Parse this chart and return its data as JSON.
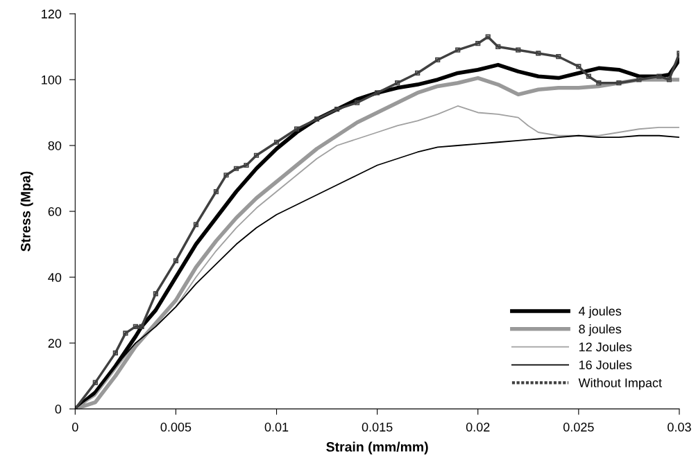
{
  "chart_data": {
    "type": "line",
    "xlabel": "Strain (mm/mm)",
    "ylabel": "Stress (Mpa)",
    "xlim": [
      0,
      0.03
    ],
    "xticks": [
      0,
      0.005,
      0.01,
      0.015,
      0.02,
      0.025,
      0.03
    ],
    "ylim": [
      0,
      120
    ],
    "yticks": [
      0,
      20,
      40,
      60,
      80,
      100,
      120
    ],
    "grid": false,
    "legend": "bottom right",
    "marker": "none",
    "line_style": "solid",
    "series": [
      {
        "name": "4 joules",
        "color": "#000000",
        "x": [
          0,
          0.001,
          0.002,
          0.003,
          0.0033,
          0.004,
          0.005,
          0.006,
          0.007,
          0.008,
          0.009,
          0.01,
          0.011,
          0.012,
          0.013,
          0.014,
          0.015,
          0.016,
          0.017,
          0.018,
          0.019,
          0.02,
          0.021,
          0.022,
          0.023,
          0.024,
          0.025,
          0.026,
          0.027,
          0.028,
          0.029,
          0.0295,
          0.03
        ],
        "values": [
          0,
          5,
          13,
          22,
          25,
          30,
          40,
          50,
          58,
          66,
          73,
          79,
          84,
          88,
          91,
          94,
          96,
          97.5,
          98.5,
          100,
          102,
          103,
          104.5,
          102.5,
          101,
          100.5,
          102,
          103.5,
          103,
          101,
          101,
          101.5,
          106
        ]
      },
      {
        "name": "8 joules",
        "color": "#999999",
        "x": [
          0,
          0.001,
          0.002,
          0.003,
          0.004,
          0.005,
          0.006,
          0.007,
          0.008,
          0.009,
          0.01,
          0.011,
          0.012,
          0.013,
          0.014,
          0.015,
          0.016,
          0.017,
          0.018,
          0.019,
          0.02,
          0.021,
          0.022,
          0.023,
          0.024,
          0.025,
          0.026,
          0.027,
          0.028,
          0.029,
          0.03
        ],
        "values": [
          0,
          2,
          10,
          19,
          26,
          33,
          43,
          51,
          58,
          64,
          69,
          74,
          79,
          83,
          87,
          90,
          93,
          96,
          98,
          99,
          100.5,
          98.5,
          95.5,
          97,
          97.5,
          97.5,
          98,
          99,
          100,
          100,
          100
        ]
      },
      {
        "name": "12 Joules",
        "color": "#a0a0a0",
        "x": [
          0,
          0.001,
          0.002,
          0.003,
          0.004,
          0.005,
          0.006,
          0.007,
          0.008,
          0.009,
          0.01,
          0.011,
          0.012,
          0.013,
          0.014,
          0.015,
          0.016,
          0.017,
          0.018,
          0.019,
          0.02,
          0.021,
          0.022,
          0.0225,
          0.023,
          0.024,
          0.025,
          0.026,
          0.027,
          0.028,
          0.029,
          0.03
        ],
        "values": [
          0,
          4,
          12,
          20,
          25,
          31,
          40,
          48,
          55,
          61,
          66,
          71,
          76,
          80,
          82,
          84,
          86,
          87.5,
          89.5,
          92,
          90,
          89.5,
          88.5,
          86,
          84,
          83,
          83,
          83,
          84,
          85,
          85.5,
          85.5
        ]
      },
      {
        "name": "16 Joules",
        "color": "#000000",
        "x": [
          0,
          0.001,
          0.002,
          0.003,
          0.004,
          0.005,
          0.006,
          0.007,
          0.008,
          0.009,
          0.01,
          0.011,
          0.012,
          0.013,
          0.014,
          0.015,
          0.016,
          0.017,
          0.018,
          0.019,
          0.02,
          0.021,
          0.022,
          0.023,
          0.024,
          0.025,
          0.026,
          0.027,
          0.028,
          0.029,
          0.03
        ],
        "values": [
          0,
          5,
          13,
          20,
          25,
          31,
          38,
          44,
          50,
          55,
          59,
          62,
          65,
          68,
          71,
          74,
          76,
          78,
          79.5,
          80,
          80.5,
          81,
          81.5,
          82,
          82.5,
          83,
          82.5,
          82.5,
          83,
          83,
          82.5
        ]
      },
      {
        "name": "Without Impact",
        "color": "#404040",
        "marker": "square",
        "x": [
          0,
          0.001,
          0.002,
          0.0025,
          0.003,
          0.0033,
          0.004,
          0.005,
          0.006,
          0.007,
          0.0075,
          0.008,
          0.0085,
          0.009,
          0.01,
          0.011,
          0.012,
          0.013,
          0.014,
          0.015,
          0.016,
          0.017,
          0.018,
          0.019,
          0.02,
          0.0205,
          0.021,
          0.022,
          0.023,
          0.024,
          0.025,
          0.0255,
          0.026,
          0.027,
          0.028,
          0.029,
          0.0295,
          0.03
        ],
        "values": [
          0,
          8,
          17,
          23,
          25,
          25,
          35,
          45,
          56,
          66,
          71,
          73,
          74,
          77,
          81,
          85,
          88,
          91,
          93,
          96,
          99,
          102,
          106,
          109,
          111,
          113,
          110,
          109,
          108,
          107,
          104,
          101,
          99,
          99,
          100,
          101,
          100,
          108
        ]
      }
    ]
  }
}
